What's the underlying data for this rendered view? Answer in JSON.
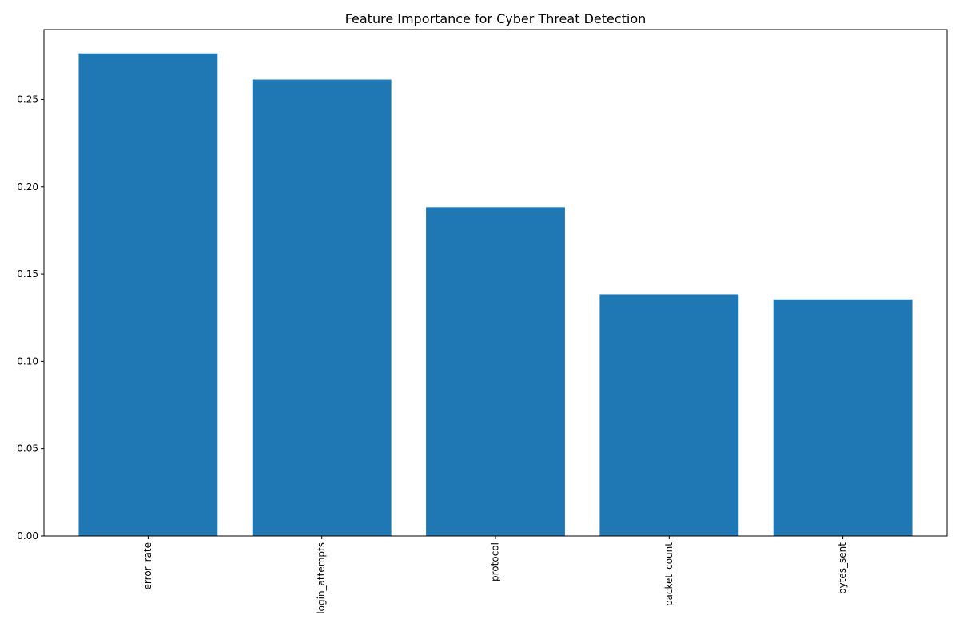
{
  "chart_data": {
    "type": "bar",
    "title": "Feature Importance for Cyber Threat Detection",
    "xlabel": "",
    "ylabel": "",
    "categories": [
      "error_rate",
      "login_attempts",
      "protocol",
      "packet_count",
      "bytes_sent"
    ],
    "values": [
      0.2764,
      0.2614,
      0.1883,
      0.1384,
      0.1355
    ],
    "ylim": [
      0,
      0.29
    ],
    "yticks": [
      "0.00",
      "0.05",
      "0.10",
      "0.15",
      "0.20",
      "0.25"
    ],
    "bar_color": "#1f77b4",
    "grid": false,
    "legend": "none"
  }
}
